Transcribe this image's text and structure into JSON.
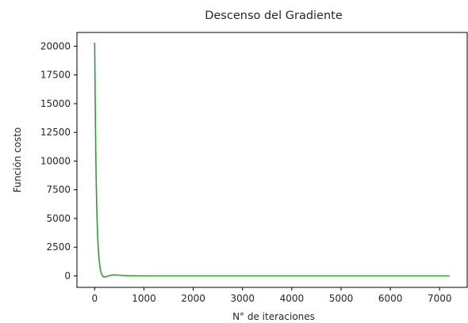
{
  "chart_data": {
    "type": "line",
    "title": "Descenso del Gradiente",
    "xlabel": "N° de iteraciones",
    "ylabel": "Función costo",
    "xlim": [
      -360,
      7560
    ],
    "ylim": [
      -1000,
      21200
    ],
    "xticks": [
      0,
      1000,
      2000,
      3000,
      4000,
      5000,
      6000,
      7000
    ],
    "xtick_labels": [
      "0",
      "1000",
      "2000",
      "3000",
      "4000",
      "5000",
      "6000",
      "7000"
    ],
    "yticks": [
      0,
      2500,
      5000,
      7500,
      10000,
      12500,
      15000,
      17500,
      20000
    ],
    "ytick_labels": [
      "0",
      "2500",
      "5000",
      "7500",
      "10000",
      "12500",
      "15000",
      "17500",
      "20000"
    ],
    "grid": false,
    "series": [
      {
        "color": "#2ca02c",
        "x": [
          0,
          10,
          20,
          30,
          40,
          50,
          60,
          70,
          80,
          100,
          120,
          140,
          160,
          180,
          200,
          220,
          250,
          300,
          350,
          400,
          500,
          600,
          700,
          800,
          1000,
          1200,
          1500,
          2000,
          3000,
          4000,
          5000,
          6000,
          7200
        ],
        "y": [
          20300,
          15500,
          11500,
          8500,
          6300,
          4700,
          3500,
          2600,
          1900,
          1000,
          450,
          150,
          0,
          -80,
          -100,
          -90,
          -40,
          30,
          70,
          80,
          60,
          30,
          10,
          5,
          0,
          0,
          0,
          0,
          0,
          0,
          0,
          0,
          0
        ]
      }
    ]
  }
}
